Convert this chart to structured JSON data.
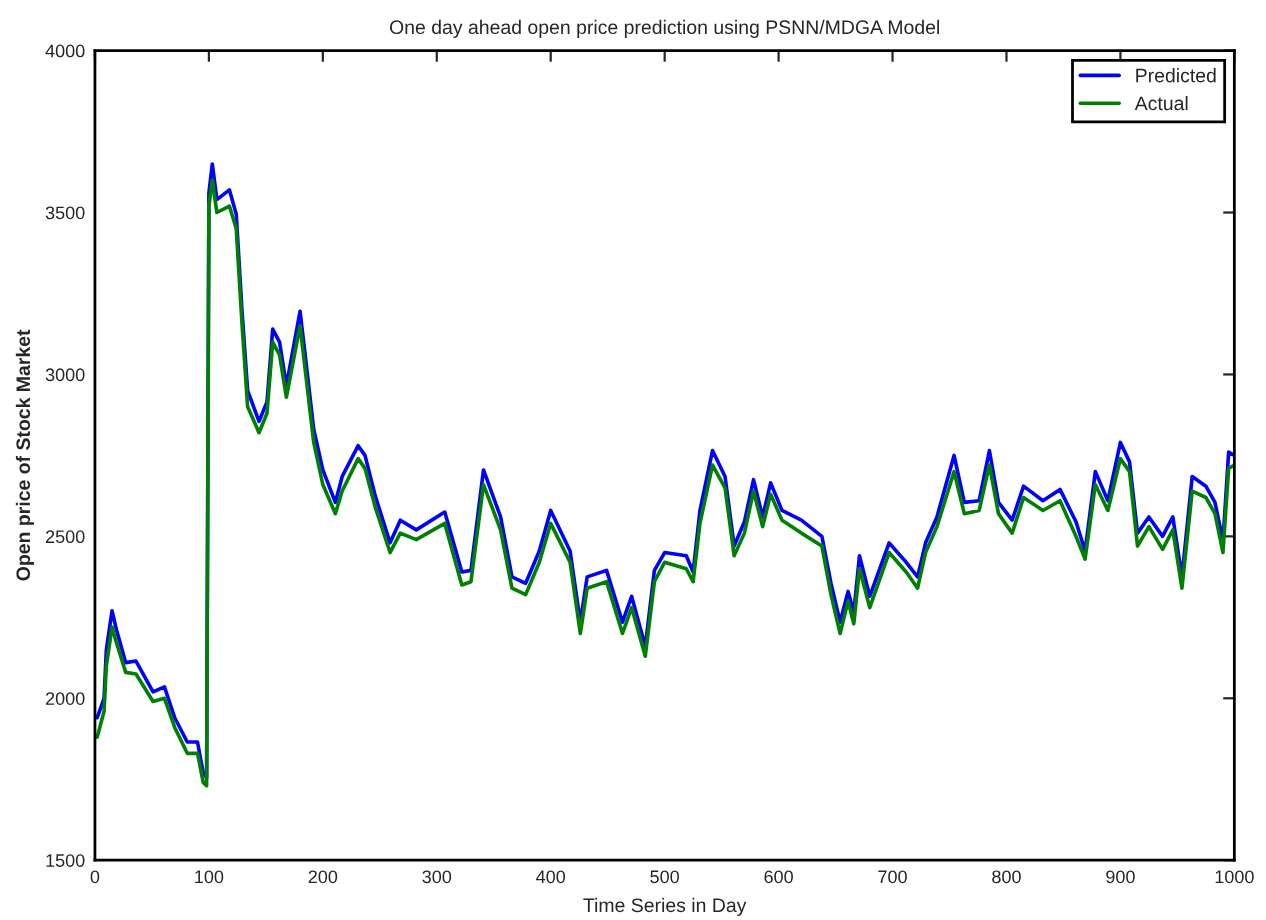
{
  "chart_data": {
    "type": "line",
    "title": "One day ahead open price prediction using PSNN/MDGA Model",
    "xlabel": "Time Series in Day",
    "ylabel": "Open price of Stock Market",
    "x": [
      2,
      8,
      10,
      15,
      19,
      27,
      36,
      51,
      61,
      70,
      81,
      90,
      95,
      98,
      100,
      103,
      107,
      118,
      124,
      129,
      134,
      144,
      151,
      156,
      162,
      168,
      180,
      186,
      192,
      200,
      211,
      217,
      231,
      237,
      246,
      259,
      268,
      282,
      307,
      322,
      330,
      341,
      356,
      366,
      378,
      390,
      400,
      417,
      426,
      432,
      449,
      463,
      471,
      483,
      491,
      500,
      519,
      525,
      531,
      542,
      553,
      561,
      570,
      578,
      586,
      593,
      603,
      620,
      638,
      646,
      654,
      661,
      666,
      671,
      680,
      697,
      712,
      722,
      729,
      739,
      754,
      763,
      776,
      785,
      793,
      805,
      815,
      832,
      847,
      861,
      869,
      878,
      889,
      900,
      908,
      915,
      925,
      937,
      946,
      954,
      963,
      975,
      983,
      990,
      995,
      1000
    ],
    "series": [
      {
        "name": "Predicted",
        "color": "#0000ff",
        "values": [
          1940,
          2000,
          2150,
          2270,
          2210,
          2110,
          2115,
          2020,
          2035,
          1940,
          1865,
          1865,
          1770,
          1755,
          3560,
          3650,
          3540,
          3570,
          3495,
          3200,
          2950,
          2855,
          2915,
          3140,
          3100,
          2965,
          3195,
          3015,
          2830,
          2705,
          2605,
          2685,
          2780,
          2750,
          2625,
          2480,
          2550,
          2520,
          2575,
          2390,
          2395,
          2705,
          2560,
          2375,
          2355,
          2455,
          2580,
          2455,
          2235,
          2375,
          2395,
          2235,
          2315,
          2160,
          2395,
          2450,
          2440,
          2390,
          2580,
          2765,
          2685,
          2470,
          2545,
          2675,
          2560,
          2665,
          2580,
          2550,
          2500,
          2355,
          2235,
          2330,
          2265,
          2440,
          2315,
          2480,
          2420,
          2375,
          2480,
          2560,
          2750,
          2605,
          2610,
          2765,
          2605,
          2550,
          2655,
          2610,
          2645,
          2545,
          2455,
          2700,
          2610,
          2790,
          2730,
          2510,
          2560,
          2500,
          2560,
          2375,
          2685,
          2655,
          2605,
          2485,
          2760,
          2750
        ]
      },
      {
        "name": "Actual",
        "color": "#008000",
        "values": [
          1880,
          1960,
          2100,
          2220,
          2170,
          2080,
          2075,
          1990,
          2000,
          1910,
          1830,
          1830,
          1740,
          1730,
          3520,
          3600,
          3500,
          3520,
          3450,
          3160,
          2900,
          2820,
          2880,
          3100,
          3060,
          2930,
          3150,
          2970,
          2790,
          2660,
          2570,
          2640,
          2740,
          2710,
          2590,
          2450,
          2510,
          2490,
          2540,
          2350,
          2360,
          2660,
          2520,
          2340,
          2320,
          2420,
          2540,
          2420,
          2200,
          2340,
          2360,
          2200,
          2280,
          2130,
          2360,
          2420,
          2400,
          2360,
          2540,
          2720,
          2650,
          2440,
          2510,
          2640,
          2530,
          2630,
          2550,
          2510,
          2470,
          2320,
          2200,
          2300,
          2230,
          2400,
          2280,
          2450,
          2390,
          2340,
          2450,
          2530,
          2700,
          2570,
          2580,
          2720,
          2570,
          2510,
          2620,
          2580,
          2610,
          2500,
          2430,
          2660,
          2580,
          2740,
          2700,
          2470,
          2530,
          2460,
          2520,
          2340,
          2640,
          2620,
          2570,
          2450,
          2710,
          2720
        ]
      }
    ],
    "xlim": [
      0,
      1000
    ],
    "xticks": [
      0,
      100,
      200,
      300,
      400,
      500,
      600,
      700,
      800,
      900,
      1000
    ],
    "ylim": [
      1500,
      4000
    ],
    "yticks": [
      1500,
      2000,
      2500,
      3000,
      3500,
      4000
    ],
    "legend": "top right",
    "grid": false,
    "marker": "none",
    "line_style": "solid"
  }
}
